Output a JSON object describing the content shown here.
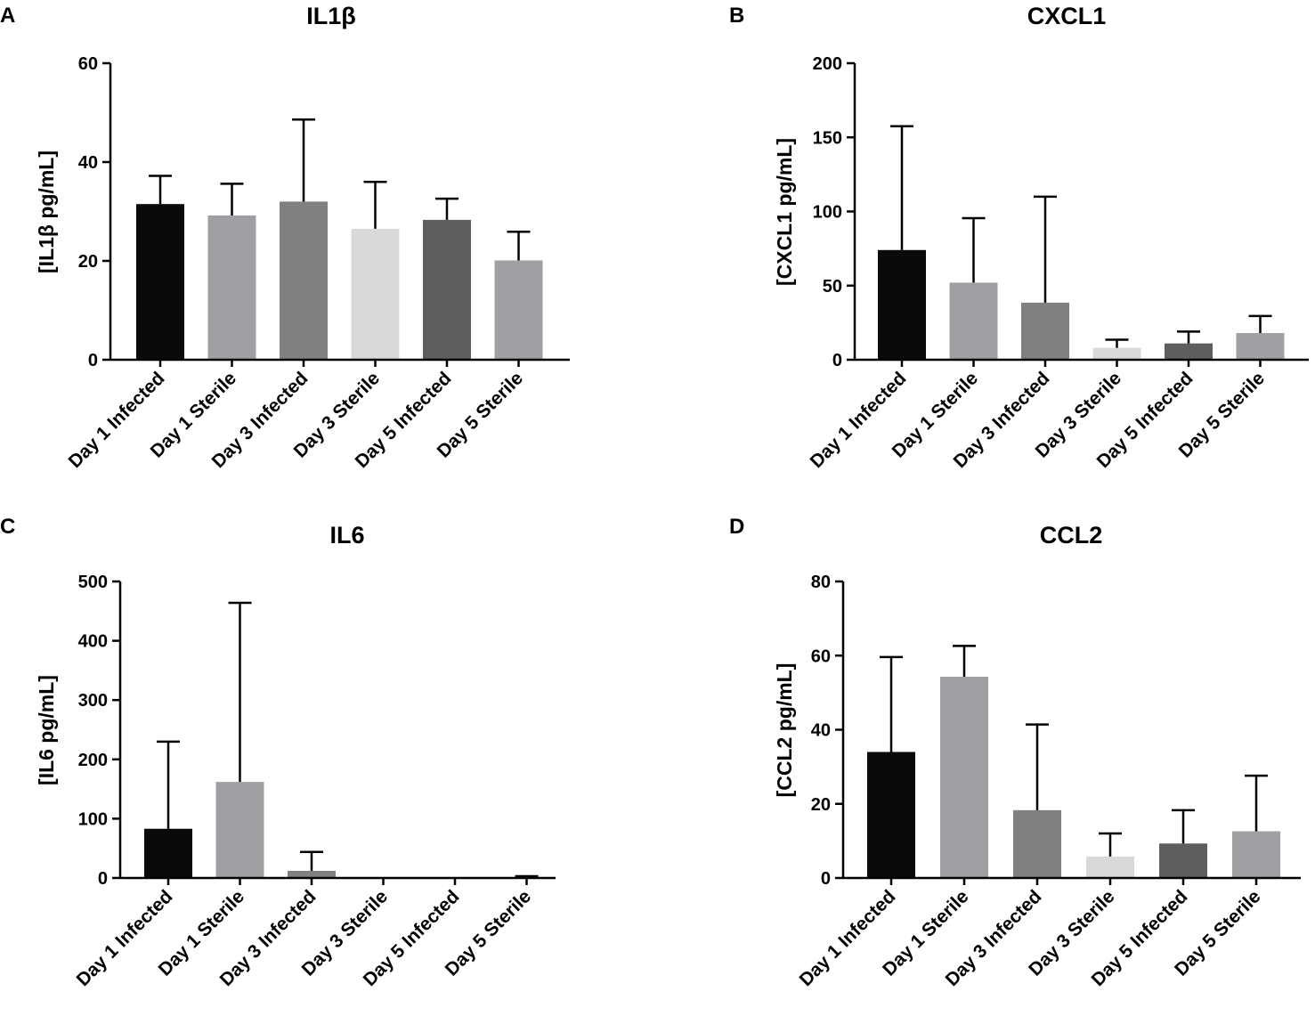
{
  "chart_data": [
    {
      "panel": "A",
      "type": "bar",
      "title": "IL1β",
      "ylabel": "[IL1β pg/mL]",
      "xlabel": "",
      "ylim": [
        0,
        60
      ],
      "yticks": [
        0,
        20,
        40,
        60
      ],
      "categories": [
        "Day 1 Infected",
        "Day 1 Sterile",
        "Day 3 Infected",
        "Day 3 Sterile",
        "Day 5 Infected",
        "Day 5 Sterile"
      ],
      "values": [
        31.5,
        29.2,
        32.0,
        26.5,
        28.3,
        20.1
      ],
      "errors": [
        37.2,
        35.6,
        48.6,
        36.0,
        32.6,
        25.9
      ],
      "colors": [
        "#0a0a0a",
        "#a0a0a4",
        "#808080",
        "#d9d9d9",
        "#5e5e5e",
        "#a0a0a4"
      ]
    },
    {
      "panel": "B",
      "type": "bar",
      "title": "CXCL1",
      "ylabel": "[CXCL1 pg/mL]",
      "xlabel": "",
      "ylim": [
        0,
        200
      ],
      "yticks": [
        0,
        50,
        100,
        150,
        200
      ],
      "categories": [
        "Day 1 Infected",
        "Day 1 Sterile",
        "Day 3 Infected",
        "Day 3 Sterile",
        "Day 5 Infected",
        "Day 5 Sterile"
      ],
      "values": [
        74,
        52,
        38.5,
        8,
        11,
        18
      ],
      "errors": [
        157.5,
        95.5,
        110,
        13.5,
        19,
        29.5
      ],
      "colors": [
        "#0a0a0a",
        "#a0a0a4",
        "#808080",
        "#d9d9d9",
        "#5e5e5e",
        "#a0a0a4"
      ]
    },
    {
      "panel": "C",
      "type": "bar",
      "title": "IL6",
      "ylabel": "[IL6 pg/mL]",
      "xlabel": "",
      "ylim": [
        0,
        500
      ],
      "yticks": [
        0,
        100,
        200,
        300,
        400,
        500
      ],
      "categories": [
        "Day 1 Infected",
        "Day 1 Sterile",
        "Day 3 Infected",
        "Day 3 Sterile",
        "Day 5 Infected",
        "Day 5 Sterile"
      ],
      "values": [
        83,
        162,
        12,
        0,
        0,
        1
      ],
      "errors": [
        230,
        464,
        44,
        0,
        0,
        3
      ],
      "colors": [
        "#0a0a0a",
        "#a0a0a4",
        "#808080",
        "#d9d9d9",
        "#5e5e5e",
        "#a0a0a4"
      ]
    },
    {
      "panel": "D",
      "type": "bar",
      "title": "CCL2",
      "ylabel": "[CCL2 pg/mL]",
      "xlabel": "",
      "ylim": [
        0,
        80
      ],
      "yticks": [
        0,
        20,
        40,
        60,
        80
      ],
      "categories": [
        "Day 1 Infected",
        "Day 1 Sterile",
        "Day 3 Infected",
        "Day 3 Sterile",
        "Day 5 Infected",
        "Day 5 Sterile"
      ],
      "values": [
        34,
        54.3,
        18.3,
        5.8,
        9.3,
        12.6
      ],
      "errors": [
        59.6,
        62.6,
        41.4,
        12.0,
        18.3,
        27.6
      ],
      "colors": [
        "#0a0a0a",
        "#a0a0a4",
        "#808080",
        "#d9d9d9",
        "#5e5e5e",
        "#a0a0a4"
      ]
    }
  ]
}
